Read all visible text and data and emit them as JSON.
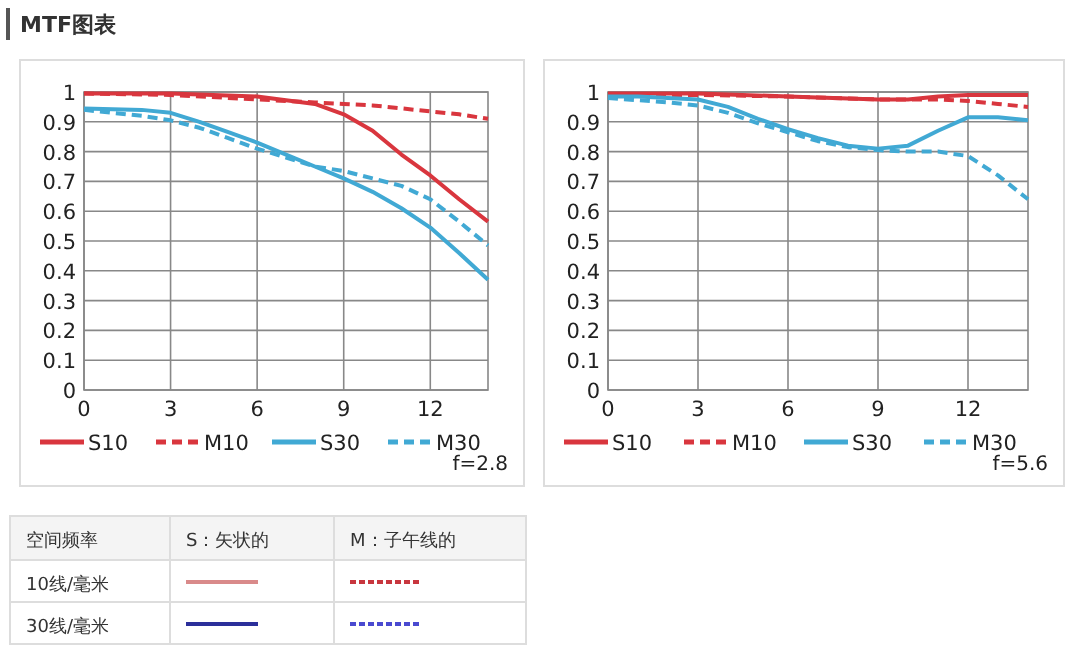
{
  "chart_data": [
    {
      "type": "line",
      "title": "MTF图表",
      "xlim": [
        0,
        14
      ],
      "xticks": [
        0,
        3,
        6,
        9,
        12
      ],
      "ylim": [
        0,
        1
      ],
      "yticks": [
        0,
        0.1,
        0.2,
        0.3,
        0.4,
        0.5,
        0.6,
        0.7,
        0.8,
        0.9,
        1
      ],
      "grid": true,
      "legend": "bottom",
      "annotations": [
        "f=2.8"
      ],
      "series": [
        {
          "name": "S10",
          "color": "#d9363e",
          "line_style": "solid",
          "x": [
            0,
            3,
            6,
            8,
            9,
            10,
            11,
            12,
            13,
            14
          ],
          "values": [
            0.995,
            0.995,
            0.985,
            0.96,
            0.925,
            0.87,
            0.79,
            0.72,
            0.64,
            0.565
          ]
        },
        {
          "name": "M10",
          "color": "#d9363e",
          "line_style": "dashed",
          "x": [
            0,
            3,
            6,
            8,
            9,
            10,
            11,
            12,
            13,
            14
          ],
          "values": [
            0.995,
            0.99,
            0.975,
            0.965,
            0.96,
            0.955,
            0.945,
            0.935,
            0.925,
            0.91
          ]
        },
        {
          "name": "S30",
          "color": "#41a9d4",
          "line_style": "solid",
          "x": [
            0,
            2,
            3,
            4,
            5,
            6,
            7,
            8,
            9,
            10,
            11,
            12,
            13,
            14
          ],
          "values": [
            0.945,
            0.94,
            0.93,
            0.9,
            0.865,
            0.83,
            0.79,
            0.75,
            0.71,
            0.665,
            0.61,
            0.545,
            0.46,
            0.37
          ]
        },
        {
          "name": "M30",
          "color": "#41a9d4",
          "line_style": "dashed",
          "x": [
            0,
            2,
            3,
            4,
            5,
            6,
            7,
            8,
            9,
            10,
            11,
            12,
            13,
            14
          ],
          "values": [
            0.94,
            0.92,
            0.905,
            0.88,
            0.845,
            0.81,
            0.78,
            0.75,
            0.735,
            0.71,
            0.685,
            0.64,
            0.565,
            0.485
          ]
        }
      ]
    },
    {
      "type": "line",
      "xlim": [
        0,
        14
      ],
      "xticks": [
        0,
        3,
        6,
        9,
        12
      ],
      "ylim": [
        0,
        1
      ],
      "yticks": [
        0,
        0.1,
        0.2,
        0.3,
        0.4,
        0.5,
        0.6,
        0.7,
        0.8,
        0.9,
        1
      ],
      "grid": true,
      "legend": "bottom",
      "annotations": [
        "f=5.6"
      ],
      "series": [
        {
          "name": "S10",
          "color": "#d9363e",
          "line_style": "solid",
          "x": [
            0,
            3,
            6,
            9,
            10,
            11,
            12,
            14
          ],
          "values": [
            0.995,
            0.995,
            0.985,
            0.975,
            0.975,
            0.985,
            0.99,
            0.99
          ]
        },
        {
          "name": "M10",
          "color": "#d9363e",
          "line_style": "dashed",
          "x": [
            0,
            3,
            6,
            9,
            10,
            11,
            12,
            13,
            14
          ],
          "values": [
            0.99,
            0.99,
            0.985,
            0.975,
            0.975,
            0.975,
            0.97,
            0.96,
            0.95
          ]
        },
        {
          "name": "S30",
          "color": "#41a9d4",
          "line_style": "solid",
          "x": [
            0,
            1,
            2,
            3,
            4,
            5,
            6,
            7,
            8,
            9,
            10,
            11,
            12,
            13,
            14
          ],
          "values": [
            0.985,
            0.985,
            0.98,
            0.975,
            0.95,
            0.91,
            0.875,
            0.845,
            0.82,
            0.81,
            0.82,
            0.87,
            0.915,
            0.915,
            0.905
          ]
        },
        {
          "name": "M30",
          "color": "#41a9d4",
          "line_style": "dashed",
          "x": [
            0,
            2,
            3,
            4,
            5,
            6,
            7,
            8,
            9,
            10,
            11,
            12,
            13,
            14
          ],
          "values": [
            0.98,
            0.965,
            0.955,
            0.93,
            0.895,
            0.865,
            0.835,
            0.815,
            0.805,
            0.8,
            0.8,
            0.785,
            0.72,
            0.64
          ]
        }
      ]
    },
    {
      "type": "other",
      "annotations": [
        "空间频率",
        "S：矢状的",
        "M：子午线的",
        "10线/毫米",
        "30线/毫米"
      ]
    }
  ]
}
